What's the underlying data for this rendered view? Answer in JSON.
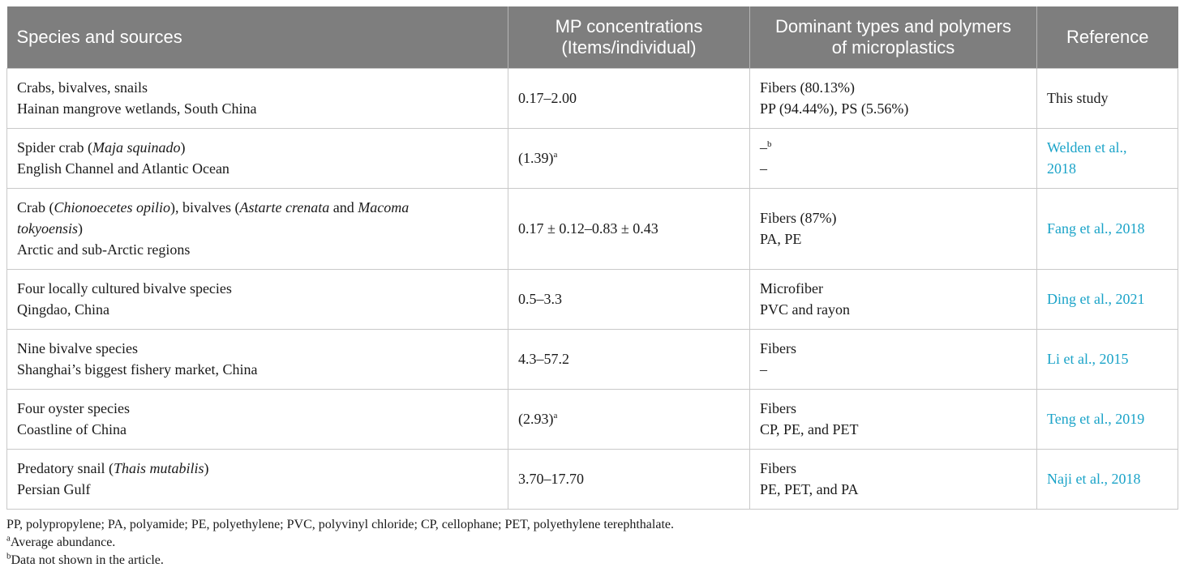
{
  "headers": [
    {
      "id": "species",
      "text": "Species and sources"
    },
    {
      "id": "mp",
      "line1": "MP concentrations",
      "line2": "(Items/individual)"
    },
    {
      "id": "types",
      "line1": "Dominant types and polymers",
      "line2": "of microplastics"
    },
    {
      "id": "ref",
      "text": "Reference"
    }
  ],
  "rows": [
    {
      "species_line1": "Crabs, bivalves, snails",
      "species_line2": "Hainan mangrove wetlands, South China",
      "concentration": "0.17–2.00",
      "type": "Fibers (80.13%)",
      "polymer": "PP (94.44%), PS (5.56%)",
      "ref_line1": "This study",
      "ref_line2": ""
    },
    {
      "species_a": "Spider crab (",
      "species_i": "Maja squinado",
      "species_b": ")",
      "species_line2": "English Channel and Atlantic Ocean",
      "concentration": "(1.39)",
      "concentration_sup": "a",
      "type": "–",
      "type_sup": "b",
      "polymer": "–",
      "ref_line1": "Welden et al.,",
      "ref_line2": "2018"
    },
    {
      "species_a": "Crab (",
      "species_i1": "Chionoecetes opilio",
      "species_b": "), bivalves (",
      "species_i2": "Astarte crenata",
      "species_c": " and ",
      "species_i3": "Macoma",
      "species_i4": "tokyoensis",
      "species_d": ")",
      "species_line3": "Arctic and sub-Arctic regions",
      "concentration": "0.17 ± 0.12–0.83 ± 0.43",
      "type": "Fibers (87%)",
      "polymer": "PA, PE",
      "ref_line1": "Fang et al., 2018"
    },
    {
      "species_line1": "Four locally cultured bivalve species",
      "species_line2": "Qingdao, China",
      "concentration": "0.5–3.3",
      "type": "Microfiber",
      "polymer": "PVC and rayon",
      "ref_line1": "Ding et al., 2021"
    },
    {
      "species_line1": "Nine bivalve species",
      "species_line2": "Shanghai’s biggest fishery market, China",
      "concentration": "4.3–57.2",
      "type": "Fibers",
      "polymer": "–",
      "ref_line1": "Li et al., 2015"
    },
    {
      "species_line1": "Four oyster species",
      "species_line2": "Coastline of China",
      "concentration": "(2.93)",
      "concentration_sup": "a",
      "type": "Fibers",
      "polymer": "CP, PE, and PET",
      "ref_line1": "Teng et al., 2019"
    },
    {
      "species_a": "Predatory snail (",
      "species_i": "Thais mutabilis",
      "species_b": ")",
      "species_line2": "Persian Gulf",
      "concentration": "3.70–17.70",
      "type": "Fibers",
      "polymer": "PE, PET, and PA",
      "ref_line1": "Naji et al., 2018"
    }
  ],
  "notes": {
    "abbreviations": "PP, polypropylene; PA, polyamide; PE, polyethylene; PVC, polyvinyl chloride; CP, cellophane; PET, polyethylene terephthalate.",
    "note_a_mark": "a",
    "note_a_text": "Average abundance.",
    "note_b_mark": "b",
    "note_b_text": "Data not shown in the article."
  },
  "colors": {
    "header_bg": "#7e7e7e",
    "link": "#1aa3c8",
    "border": "#c9c9c9"
  }
}
